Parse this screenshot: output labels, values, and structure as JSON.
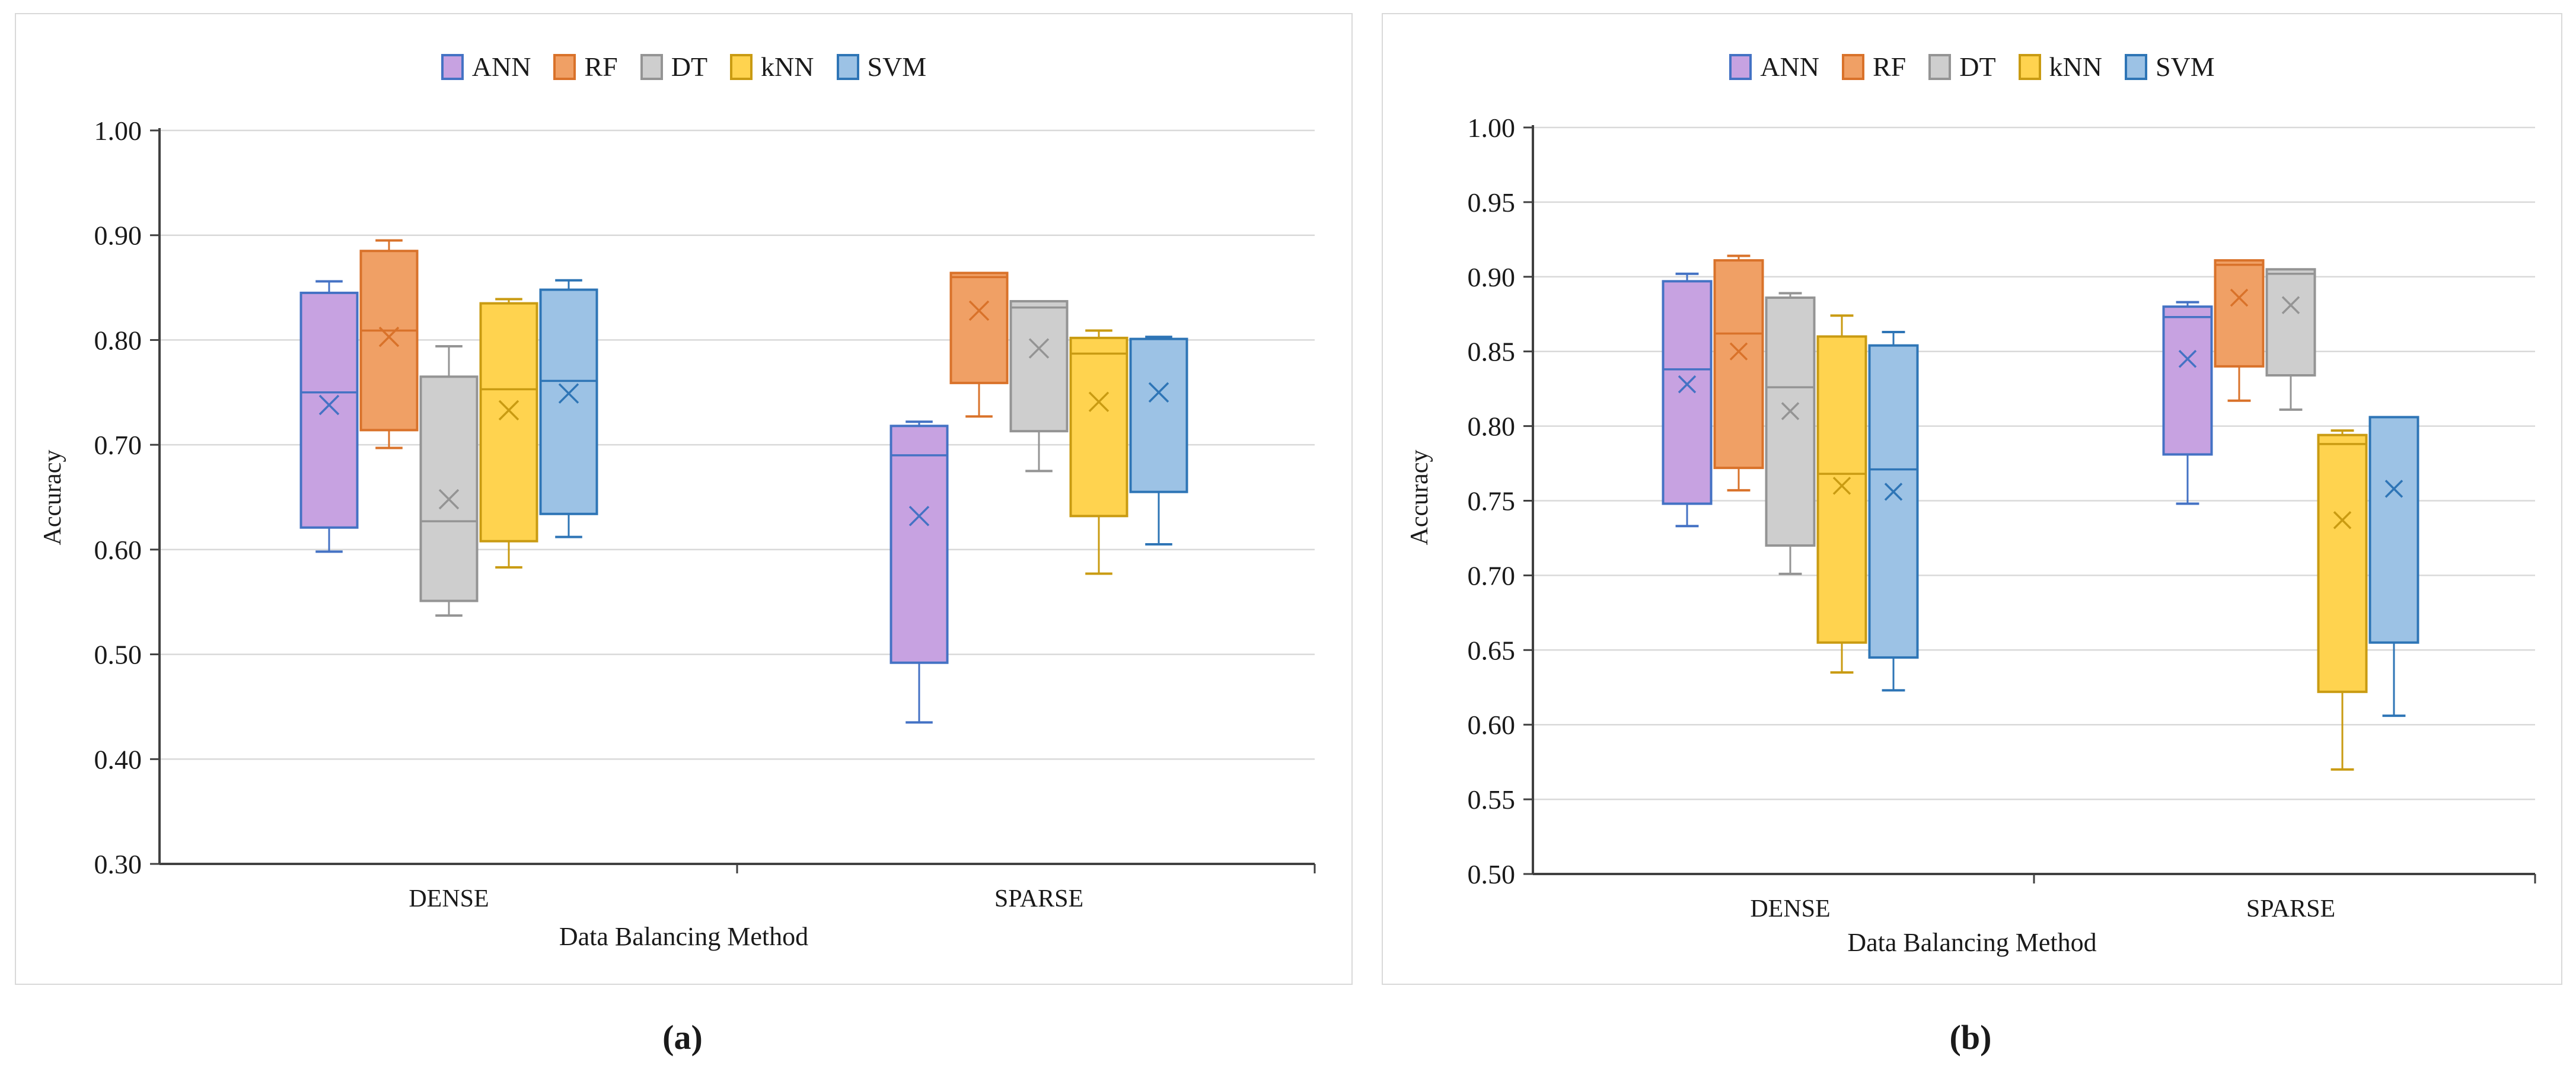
{
  "figure": {
    "background": "#ffffff",
    "panel_border_color": "#d9d9d9",
    "gridline_color": "#d9d9d9",
    "axis_color": "#404040",
    "text_color": "#1a1a1a"
  },
  "chart_data": [
    {
      "id": "a",
      "type": "boxplot",
      "caption": "(a)",
      "xlabel": "Data Balancing Method",
      "ylabel": "Accuracy",
      "categories": [
        "DENSE",
        "SPARSE"
      ],
      "ylim": [
        0.3,
        1.0
      ],
      "ytick_step": 0.1,
      "yticks": [
        "1.00",
        "0.90",
        "0.80",
        "0.70",
        "0.60",
        "0.50",
        "0.40",
        "0.30"
      ],
      "grid": true,
      "legend_position": "top-center",
      "series": [
        {
          "name": "ANN",
          "fill": "#c7a2e1",
          "stroke": "#4472c4",
          "boxes": [
            {
              "category": "DENSE",
              "whisker_low": 0.598,
              "q1": 0.621,
              "median": 0.75,
              "mean": 0.738,
              "q3": 0.845,
              "whisker_high": 0.856
            },
            {
              "category": "SPARSE",
              "whisker_low": 0.435,
              "q1": 0.492,
              "median": 0.69,
              "mean": 0.632,
              "q3": 0.718,
              "whisker_high": 0.722
            }
          ]
        },
        {
          "name": "RF",
          "fill": "#f0a065",
          "stroke": "#d9722a",
          "boxes": [
            {
              "category": "DENSE",
              "whisker_low": 0.697,
              "q1": 0.714,
              "median": 0.809,
              "mean": 0.803,
              "q3": 0.885,
              "whisker_high": 0.895
            },
            {
              "category": "SPARSE",
              "whisker_low": 0.727,
              "q1": 0.759,
              "median": 0.86,
              "mean": 0.828,
              "q3": 0.864,
              "whisker_high": 0.864
            }
          ]
        },
        {
          "name": "DT",
          "fill": "#cecece",
          "stroke": "#949494",
          "boxes": [
            {
              "category": "DENSE",
              "whisker_low": 0.537,
              "q1": 0.551,
              "median": 0.627,
              "mean": 0.648,
              "q3": 0.765,
              "whisker_high": 0.794
            },
            {
              "category": "SPARSE",
              "whisker_low": 0.675,
              "q1": 0.713,
              "median": 0.831,
              "mean": 0.792,
              "q3": 0.837,
              "whisker_high": 0.837
            }
          ]
        },
        {
          "name": "kNN",
          "fill": "#ffd34f",
          "stroke": "#c99b12",
          "boxes": [
            {
              "category": "DENSE",
              "whisker_low": 0.583,
              "q1": 0.608,
              "median": 0.753,
              "mean": 0.733,
              "q3": 0.835,
              "whisker_high": 0.839
            },
            {
              "category": "SPARSE",
              "whisker_low": 0.577,
              "q1": 0.632,
              "median": 0.787,
              "mean": 0.741,
              "q3": 0.802,
              "whisker_high": 0.809
            }
          ]
        },
        {
          "name": "SVM",
          "fill": "#9cc2e5",
          "stroke": "#2e75b6",
          "boxes": [
            {
              "category": "DENSE",
              "whisker_low": 0.612,
              "q1": 0.634,
              "median": 0.761,
              "mean": 0.749,
              "q3": 0.848,
              "whisker_high": 0.857
            },
            {
              "category": "SPARSE",
              "whisker_low": 0.605,
              "q1": 0.655,
              "median": 0.801,
              "mean": 0.75,
              "q3": 0.801,
              "whisker_high": 0.803
            }
          ]
        }
      ]
    },
    {
      "id": "b",
      "type": "boxplot",
      "caption": "(b)",
      "xlabel": "Data Balancing Method",
      "ylabel": "Accuracy",
      "categories": [
        "DENSE",
        "SPARSE"
      ],
      "ylim": [
        0.5,
        1.0
      ],
      "ytick_step": 0.05,
      "yticks": [
        "1.00",
        "0.95",
        "0.90",
        "0.85",
        "0.80",
        "0.75",
        "0.70",
        "0.65",
        "0.60",
        "0.55",
        "0.50"
      ],
      "grid": true,
      "legend_position": "top-center",
      "series": [
        {
          "name": "ANN",
          "fill": "#c7a2e1",
          "stroke": "#4472c4",
          "boxes": [
            {
              "category": "DENSE",
              "whisker_low": 0.733,
              "q1": 0.748,
              "median": 0.838,
              "mean": 0.828,
              "q3": 0.897,
              "whisker_high": 0.902
            },
            {
              "category": "SPARSE",
              "whisker_low": 0.748,
              "q1": 0.781,
              "median": 0.873,
              "mean": 0.845,
              "q3": 0.88,
              "whisker_high": 0.883
            }
          ]
        },
        {
          "name": "RF",
          "fill": "#f0a065",
          "stroke": "#d9722a",
          "boxes": [
            {
              "category": "DENSE",
              "whisker_low": 0.757,
              "q1": 0.772,
              "median": 0.862,
              "mean": 0.85,
              "q3": 0.911,
              "whisker_high": 0.914
            },
            {
              "category": "SPARSE",
              "whisker_low": 0.817,
              "q1": 0.84,
              "median": 0.908,
              "mean": 0.886,
              "q3": 0.911,
              "whisker_high": 0.911
            }
          ]
        },
        {
          "name": "DT",
          "fill": "#cecece",
          "stroke": "#949494",
          "boxes": [
            {
              "category": "DENSE",
              "whisker_low": 0.701,
              "q1": 0.72,
              "median": 0.826,
              "mean": 0.81,
              "q3": 0.886,
              "whisker_high": 0.889
            },
            {
              "category": "SPARSE",
              "whisker_low": 0.811,
              "q1": 0.834,
              "median": 0.902,
              "mean": 0.881,
              "q3": 0.905,
              "whisker_high": 0.905
            }
          ]
        },
        {
          "name": "kNN",
          "fill": "#ffd34f",
          "stroke": "#c99b12",
          "boxes": [
            {
              "category": "DENSE",
              "whisker_low": 0.635,
              "q1": 0.655,
              "median": 0.768,
              "mean": 0.76,
              "q3": 0.86,
              "whisker_high": 0.874
            },
            {
              "category": "SPARSE",
              "whisker_low": 0.57,
              "q1": 0.622,
              "median": 0.788,
              "mean": 0.737,
              "q3": 0.794,
              "whisker_high": 0.797
            }
          ]
        },
        {
          "name": "SVM",
          "fill": "#9cc2e5",
          "stroke": "#2e75b6",
          "boxes": [
            {
              "category": "DENSE",
              "whisker_low": 0.623,
              "q1": 0.645,
              "median": 0.771,
              "mean": 0.756,
              "q3": 0.854,
              "whisker_high": 0.863
            },
            {
              "category": "SPARSE",
              "whisker_low": 0.606,
              "q1": 0.655,
              "median": 0.806,
              "mean": 0.758,
              "q3": 0.806,
              "whisker_high": 0.806
            }
          ]
        }
      ]
    }
  ]
}
